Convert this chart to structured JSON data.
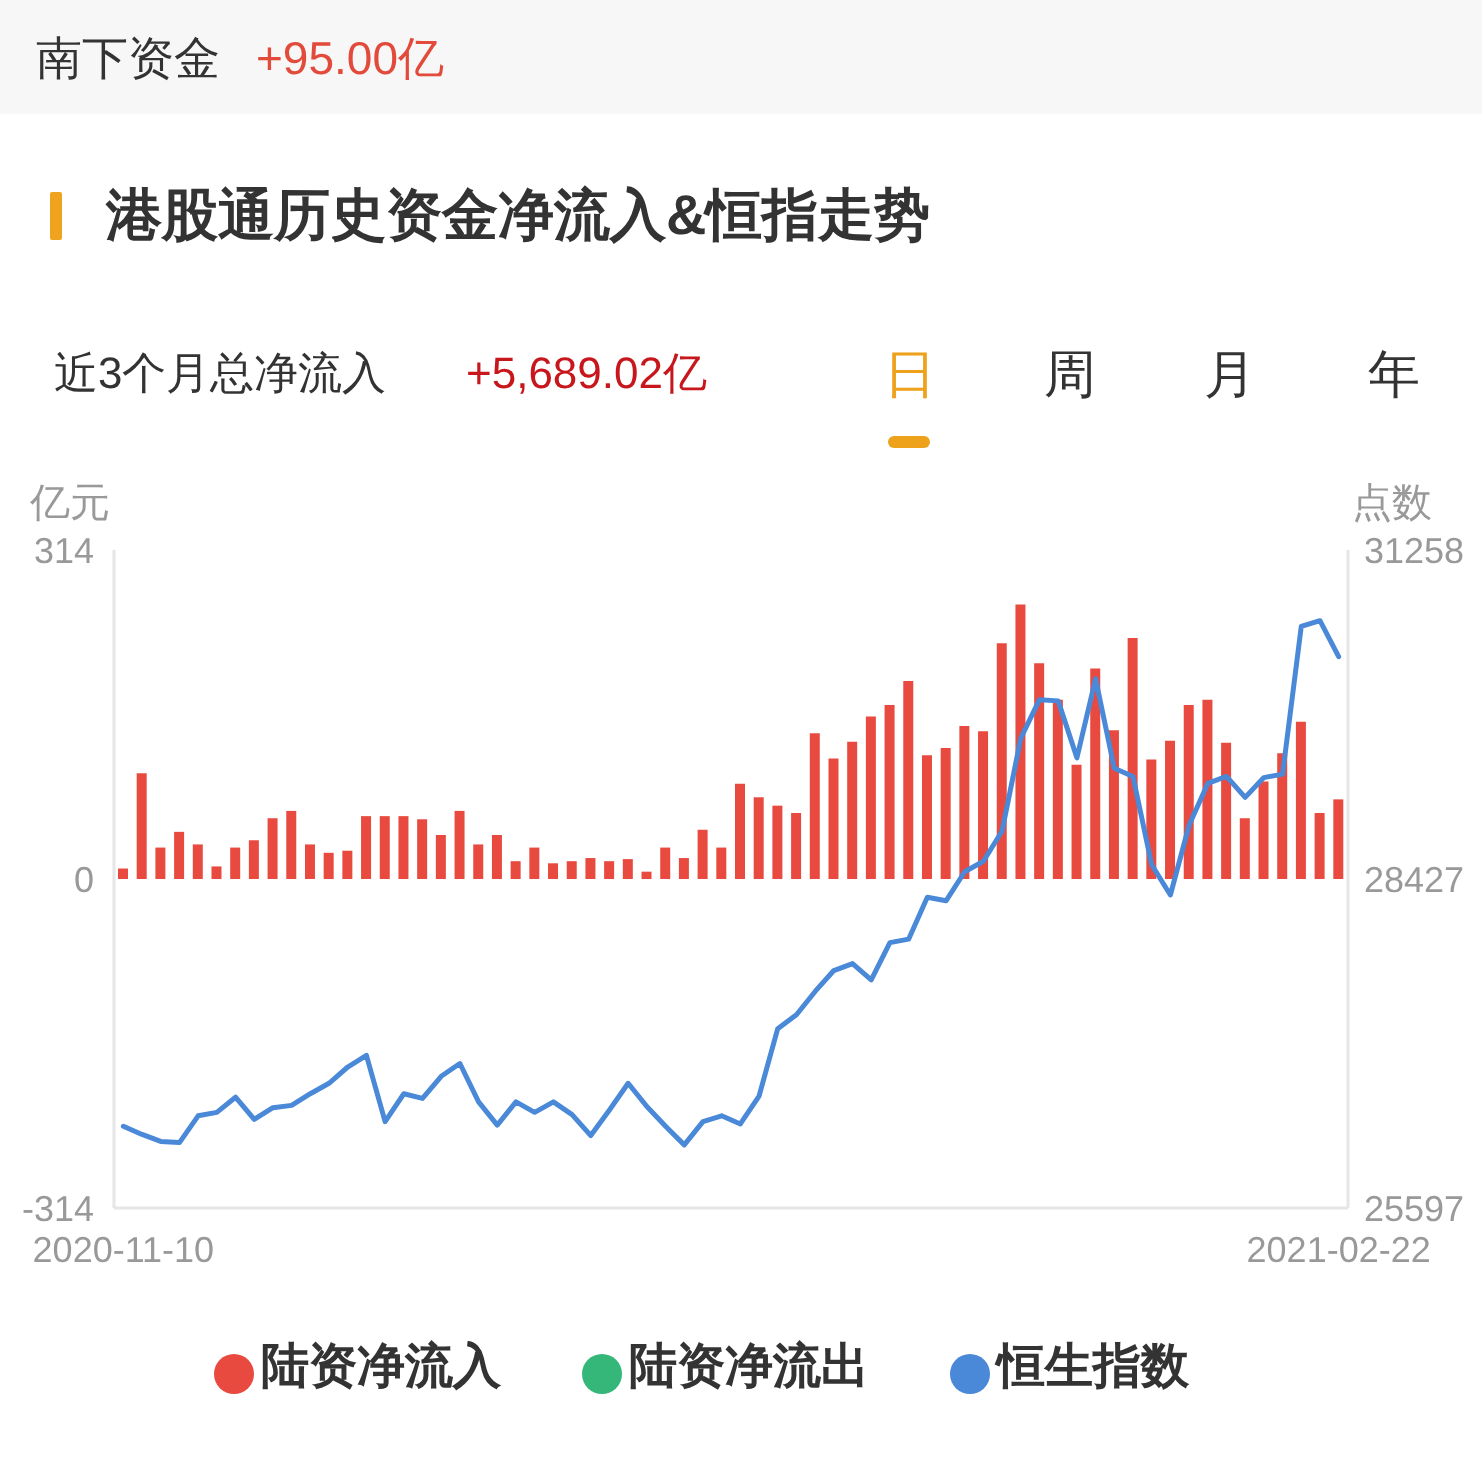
{
  "chart_data": {
    "type": "bar",
    "title": "港股通历史资金净流入&恒指走势",
    "annotations": [
      "南下资金",
      "+95.00亿",
      "近3个月总净流入",
      "+5,689.02亿",
      "日",
      "周",
      "月",
      "年"
    ],
    "ylabel": "亿元",
    "y2label": "点数",
    "categories": [
      "2020-11-10",
      null,
      null,
      null,
      null,
      null,
      null,
      null,
      null,
      null,
      null,
      null,
      null,
      null,
      null,
      null,
      null,
      null,
      null,
      null,
      null,
      null,
      null,
      null,
      null,
      null,
      null,
      null,
      null,
      null,
      null,
      null,
      null,
      null,
      null,
      null,
      null,
      null,
      null,
      null,
      null,
      null,
      null,
      null,
      null,
      null,
      null,
      null,
      null,
      null,
      null,
      null,
      null,
      null,
      null,
      null,
      null,
      null,
      null,
      null,
      null,
      null,
      null,
      null,
      null,
      "2021-02-22"
    ],
    "series": [
      {
        "name": "陆资净流入",
        "color": "#e84a3f",
        "values": [
          10,
          101,
          30,
          45,
          33,
          12,
          30,
          37,
          58,
          65,
          33,
          25,
          27,
          60,
          60,
          60,
          57,
          42,
          65,
          33,
          42,
          17,
          30,
          15,
          17,
          20,
          17,
          19,
          7,
          30,
          20,
          47,
          30,
          91,
          78,
          70,
          63,
          139,
          115,
          131,
          155,
          166,
          189,
          118,
          125,
          146,
          141,
          225,
          262,
          206,
          171,
          109,
          201,
          142,
          230,
          114,
          132,
          166,
          171,
          130,
          58,
          93,
          120,
          150,
          63,
          76
        ]
      },
      {
        "name": "陆资净流出",
        "color": "#34b779",
        "values": [
          null,
          null,
          null,
          null,
          null,
          null,
          null,
          null,
          null,
          null,
          null,
          null,
          null,
          null,
          null,
          null,
          null,
          null,
          null,
          null,
          null,
          null,
          null,
          null,
          null,
          null,
          null,
          null,
          null,
          null,
          null,
          null,
          null,
          null,
          null,
          null,
          null,
          null,
          null,
          null,
          null,
          null,
          null,
          null,
          null,
          null,
          null,
          null,
          null,
          null,
          null,
          null,
          null,
          null,
          null,
          null,
          null,
          null,
          null,
          null,
          null,
          null,
          null,
          null,
          null,
          null
        ]
      },
      {
        "name": "恒生指数",
        "type": "line",
        "axis": "y2",
        "color": "#4a88d8",
        "values": [
          26300,
          26230,
          26170,
          26160,
          26390,
          26420,
          26550,
          26360,
          26460,
          26480,
          26580,
          26670,
          26810,
          26910,
          26340,
          26580,
          26540,
          26730,
          26840,
          26510,
          26310,
          26510,
          26420,
          26510,
          26400,
          26220,
          26440,
          26670,
          26470,
          26300,
          26140,
          26340,
          26390,
          26320,
          26560,
          27140,
          27260,
          27460,
          27640,
          27700,
          27560,
          27880,
          27910,
          28270,
          28240,
          28490,
          28580,
          28840,
          29640,
          29970,
          29960,
          29470,
          30150,
          29380,
          29310,
          28550,
          28290,
          28890,
          29250,
          29310,
          29130,
          29300,
          29330,
          30600,
          30650,
          30340
        ]
      }
    ],
    "stacked": true,
    "ylim": [
      -314,
      314
    ],
    "yticks": [
      -314,
      0,
      314
    ],
    "y2lim": [
      25597,
      31258
    ],
    "y2ticks": [
      25597,
      28427,
      31258
    ],
    "legend": "bottom"
  }
}
